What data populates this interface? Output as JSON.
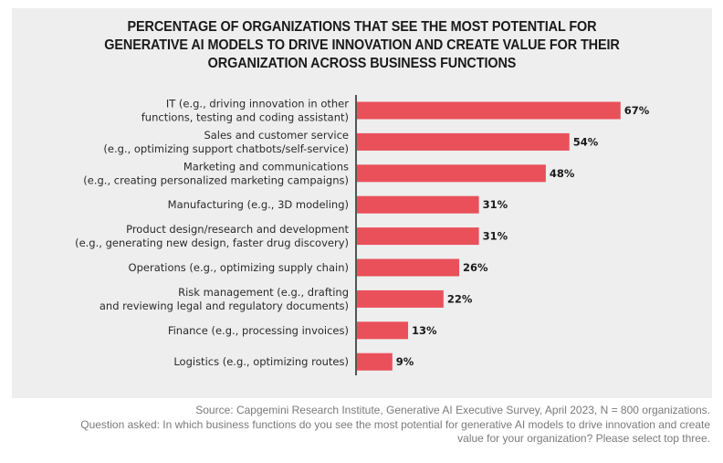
{
  "chart_data": {
    "type": "bar",
    "orientation": "horizontal",
    "title_lines": [
      "PERCENTAGE OF ORGANIZATIONS THAT SEE THE MOST POTENTIAL FOR",
      "GENERATIVE AI MODELS TO DRIVE INNOVATION AND CREATE VALUE FOR THEIR",
      "ORGANIZATION ACROSS BUSINESS FUNCTIONS"
    ],
    "xlabel": "",
    "ylabel": "",
    "xlim": [
      0,
      100
    ],
    "grid": false,
    "legend": "none",
    "value_suffix": "%",
    "bar_color": "#e9505a",
    "categories": [
      {
        "lines": [
          "IT (e.g., driving innovation in other",
          "functions, testing and coding assistant)"
        ]
      },
      {
        "lines": [
          "Sales and customer service",
          "(e.g., optimizing support chatbots/self-service)"
        ]
      },
      {
        "lines": [
          "Marketing and communications",
          "(e.g., creating personalized marketing campaigns)"
        ]
      },
      {
        "lines": [
          "Manufacturing (e.g., 3D modeling)"
        ]
      },
      {
        "lines": [
          "Product design/research and development",
          "(e.g., generating new design, faster drug discovery)"
        ]
      },
      {
        "lines": [
          "Operations (e.g., optimizing supply chain)"
        ]
      },
      {
        "lines": [
          "Risk management (e.g., drafting",
          "and reviewing legal and regulatory documents)"
        ]
      },
      {
        "lines": [
          "Finance (e.g., processing invoices)"
        ]
      },
      {
        "lines": [
          "Logistics (e.g., optimizing routes)"
        ]
      }
    ],
    "values": [
      67,
      54,
      48,
      31,
      31,
      26,
      22,
      13,
      9
    ]
  },
  "footer": {
    "source": "Source: Capgemini Research Institute, Generative AI Executive Survey, April 2023, N = 800 organizations.",
    "question_line1": "Question asked: In which business functions do you see the most potential for generative AI models to drive innovation and create",
    "question_line2": "value for your organization? Please select top three."
  }
}
